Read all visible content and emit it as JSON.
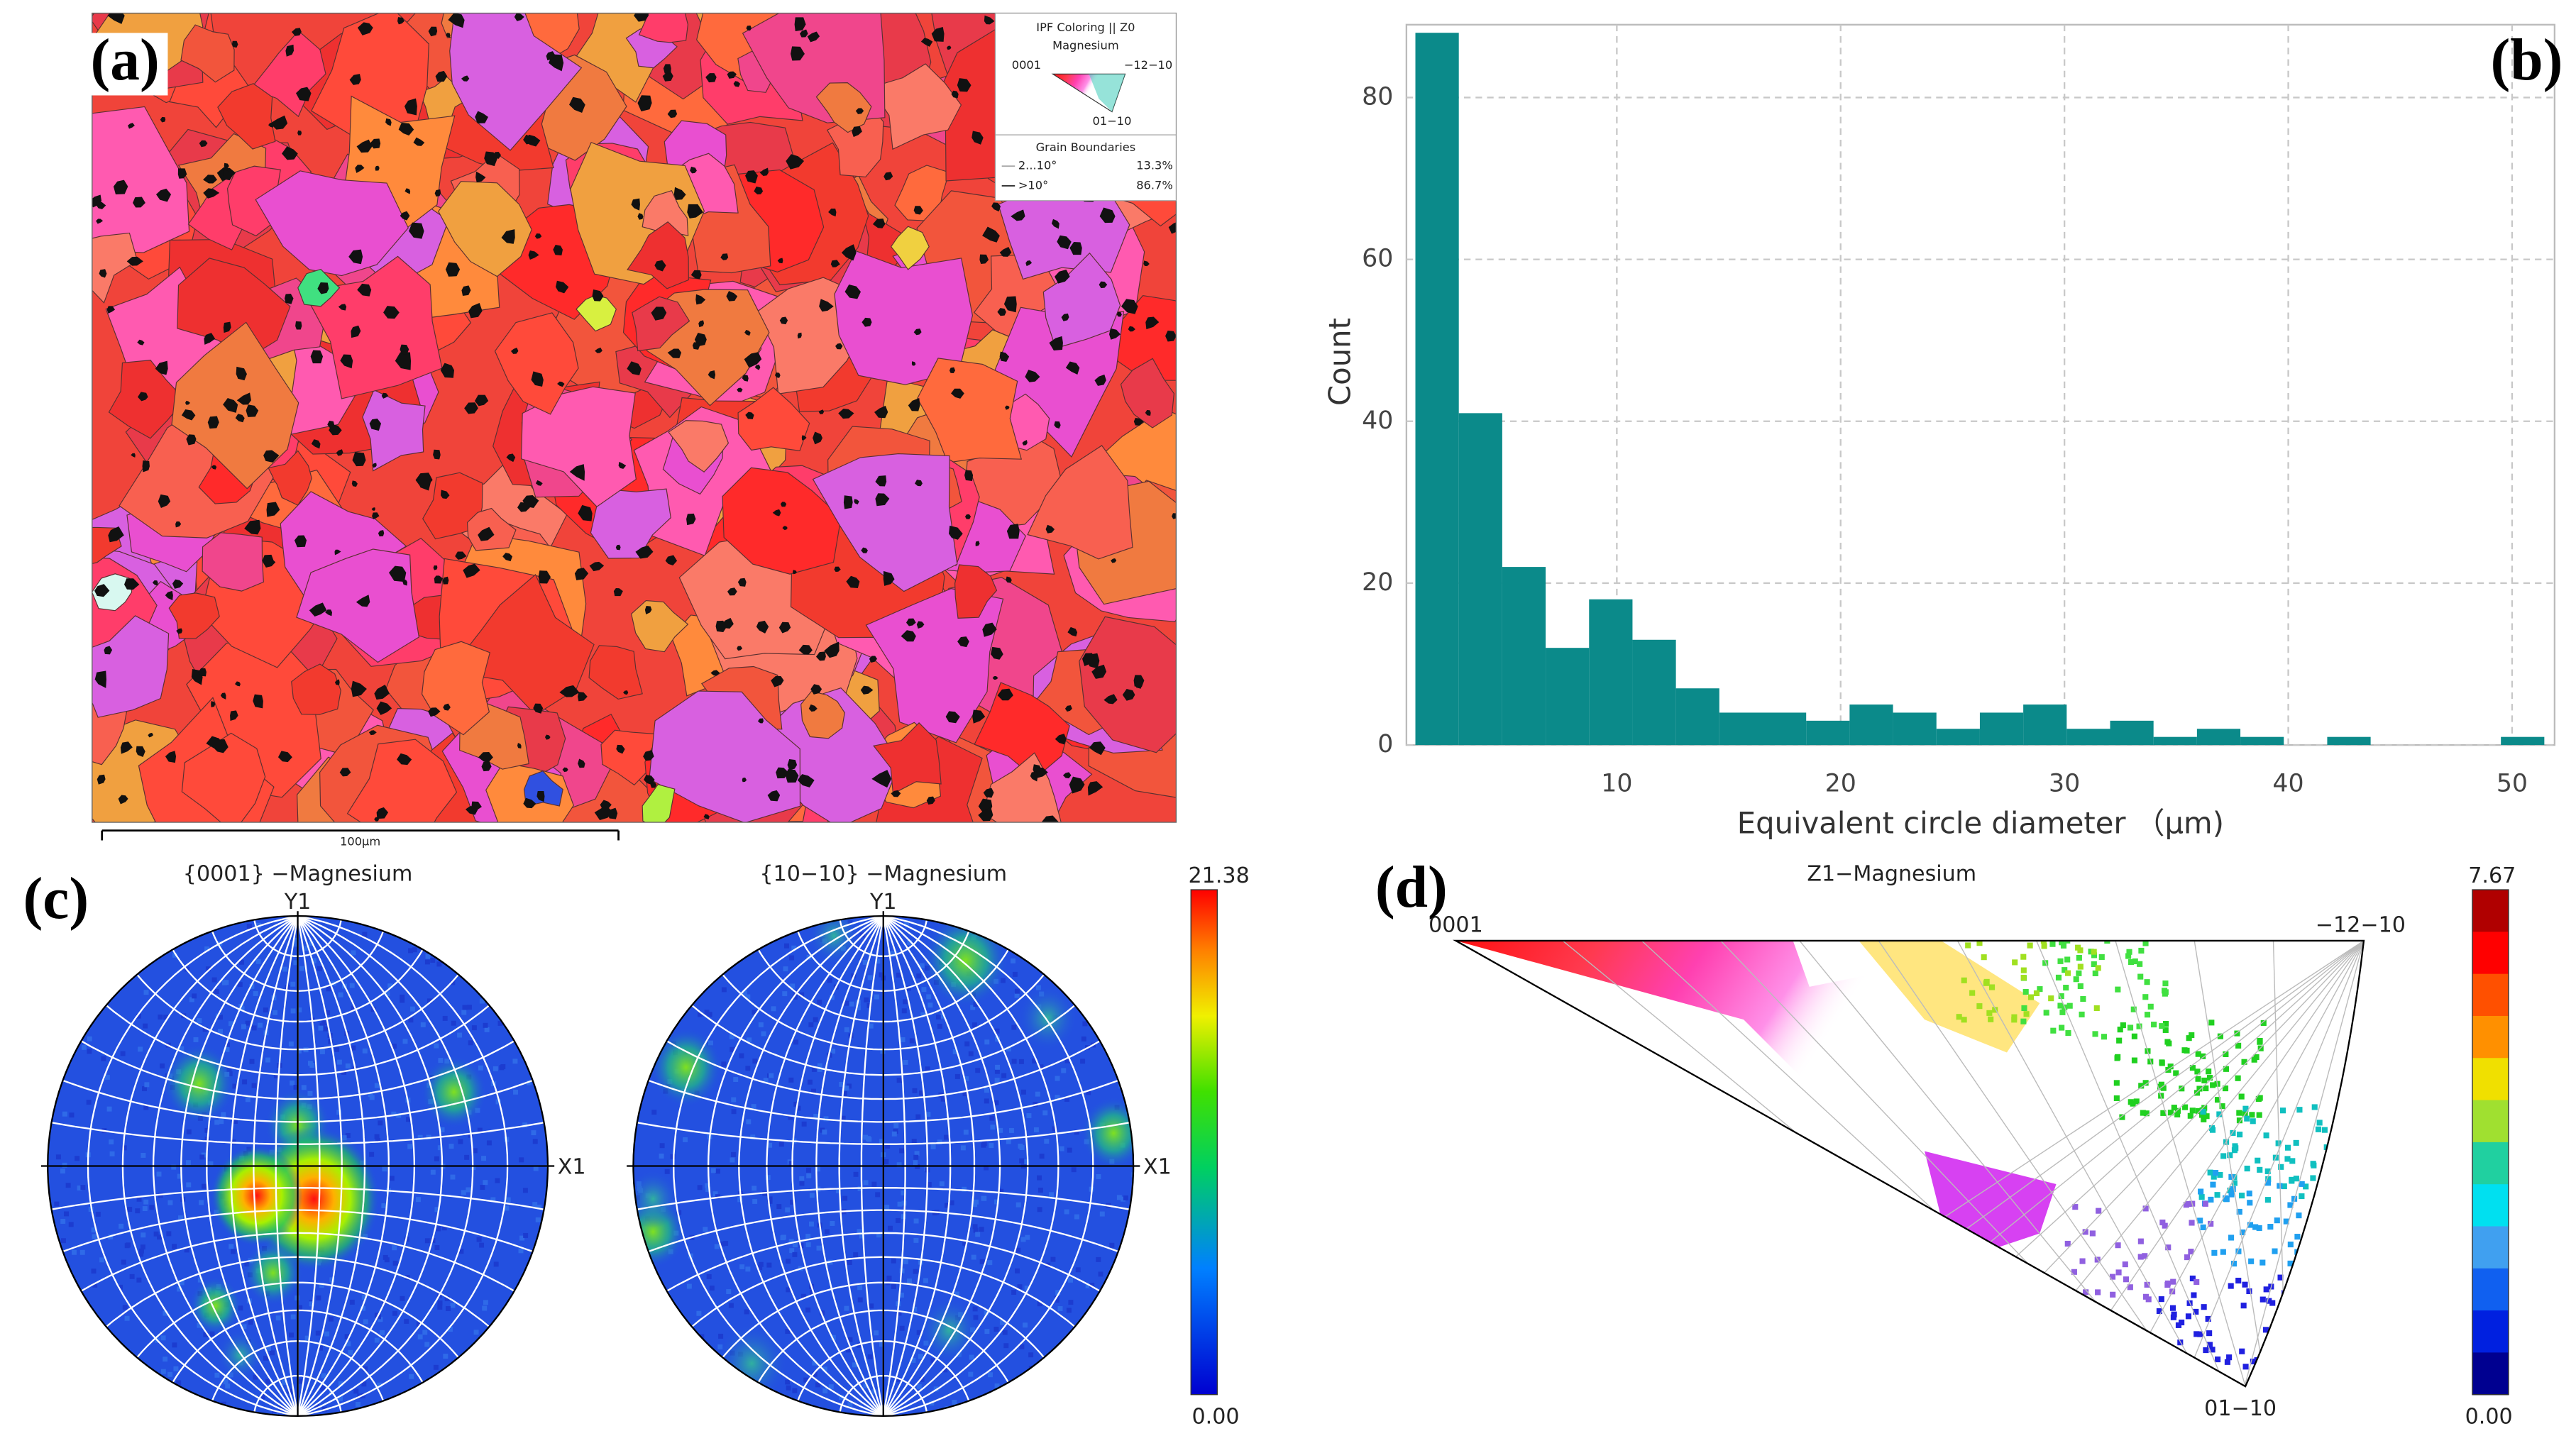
{
  "panel_labels": [
    "(a)",
    "(b)",
    "(c)",
    "(d)"
  ],
  "ebsd_map": {
    "legend": {
      "title": "IPF Coloring || Z0",
      "phase": "Magnesium",
      "corner_labels": [
        "0001",
        "−12−10",
        "01−10"
      ],
      "boundaries_title": "Grain Boundaries",
      "boundaries": [
        {
          "range": "2...10°",
          "fraction": "13.3%"
        },
        {
          "range": ">10°",
          "fraction": "86.7%"
        }
      ]
    },
    "scale_bar": "100μm"
  },
  "chart_data": {
    "type": "histogram",
    "xlabel": "Equivalent circle diameter （μm)",
    "ylabel": "Count",
    "bins": [
      1.0,
      2.94,
      4.88,
      6.82,
      8.76,
      10.7,
      12.64,
      14.58,
      16.52,
      18.46,
      20.4,
      22.34,
      24.28,
      26.22,
      28.16,
      30.1,
      32.04,
      33.98,
      35.92,
      37.86,
      39.8,
      41.74,
      43.68,
      45.62,
      47.56,
      49.5,
      51.44
    ],
    "values": [
      88,
      41,
      22,
      12,
      18,
      13,
      7,
      4,
      4,
      3,
      5,
      4,
      2,
      4,
      5,
      2,
      3,
      1,
      2,
      1,
      0,
      1,
      0,
      0,
      0,
      1
    ],
    "color": "#0b8a8a",
    "xlim": [
      0.6,
      51.9
    ],
    "ylim": [
      0,
      89
    ],
    "xticks": [
      10,
      20,
      30,
      40,
      50
    ],
    "yticks": [
      0,
      20,
      40,
      60,
      80
    ],
    "grid": true
  },
  "pole_figures": {
    "plots": [
      {
        "title": "{0001} −Magnesium",
        "y_axis": "Y1",
        "x_axis": "X1"
      },
      {
        "title": "{10−10} −Magnesium",
        "y_axis": "Y1",
        "x_axis": "X1"
      }
    ],
    "colorbar": {
      "max": "21.38",
      "min": "0.00"
    }
  },
  "inverse_pole_figure": {
    "title": "Z1−Magnesium",
    "corners": [
      "0001",
      "−12−10",
      "01−10"
    ],
    "colorbar": {
      "max": "7.67",
      "min": "0.00"
    }
  }
}
